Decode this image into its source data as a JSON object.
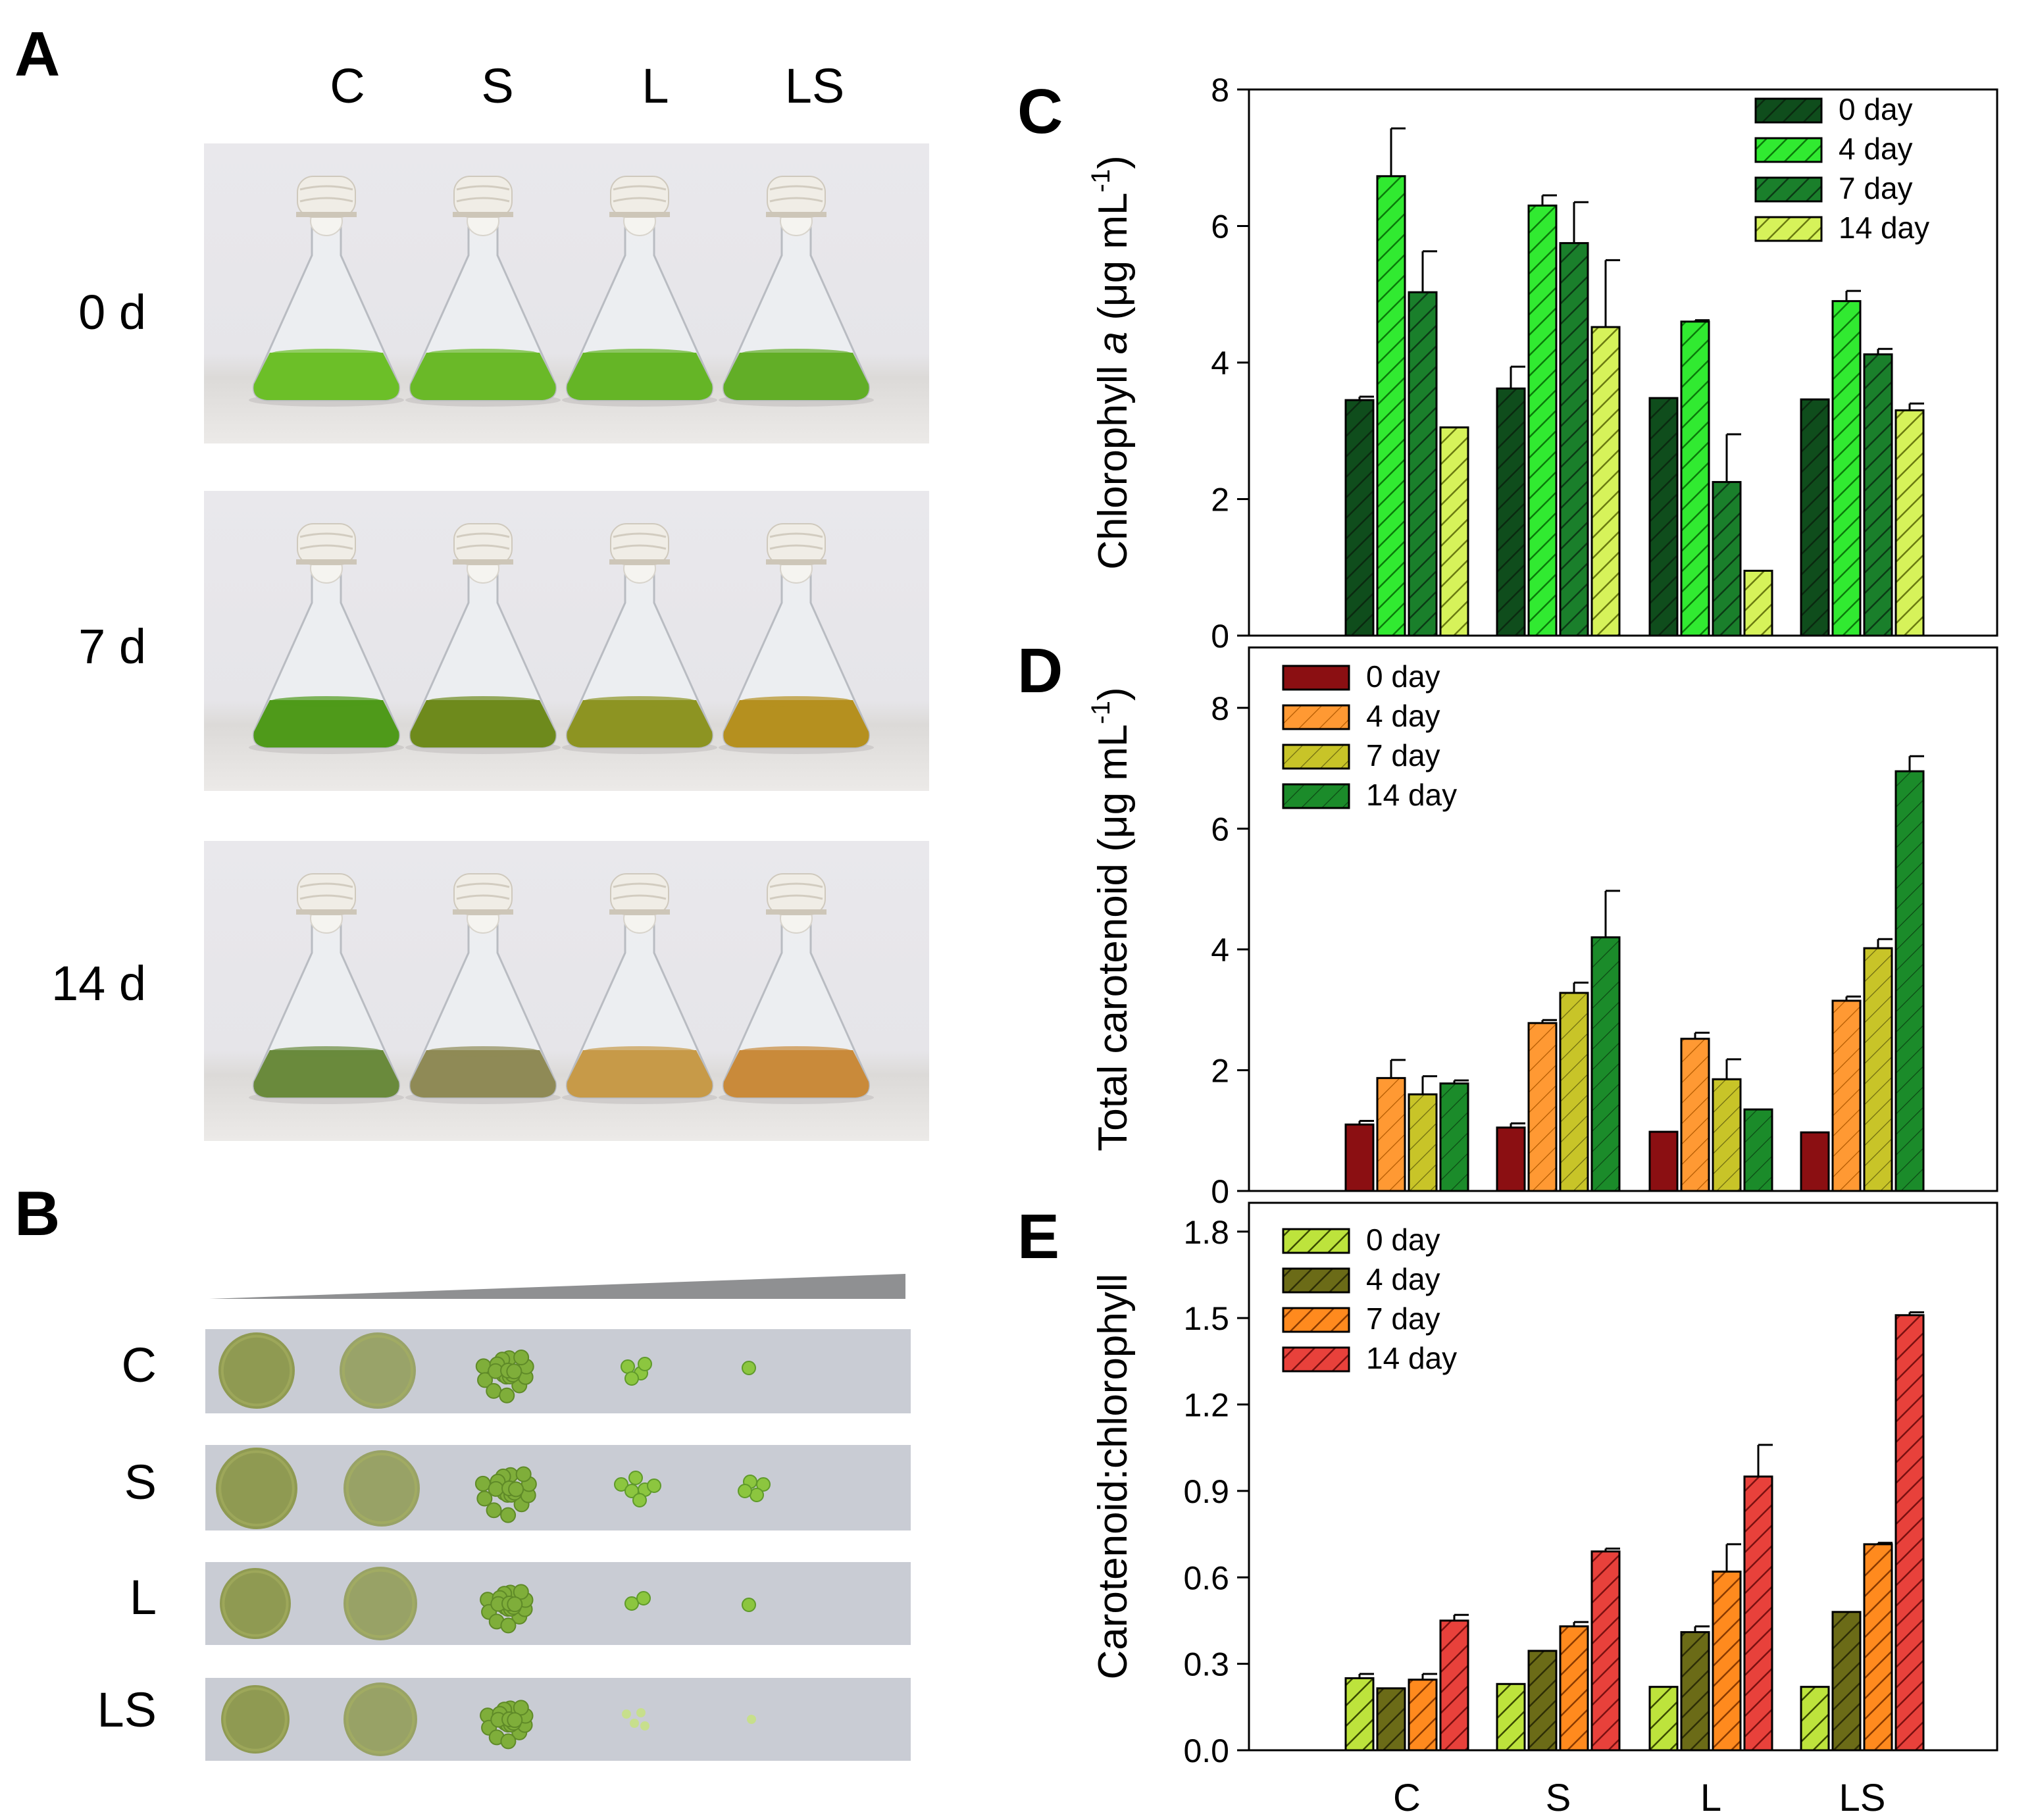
{
  "panel_a": {
    "letter": "A",
    "columns": [
      "C",
      "S",
      "L",
      "LS"
    ],
    "rows": [
      {
        "label": "0 d",
        "colors": [
          "#6cbf28",
          "#6ab928",
          "#65b526",
          "#62ae27"
        ]
      },
      {
        "label": "7 d",
        "colors": [
          "#4f9a1a",
          "#6e8a1c",
          "#8d9422",
          "#b5901f"
        ]
      },
      {
        "label": "14 d",
        "colors": [
          "#6a8a3c",
          "#8f8a56",
          "#c79a48",
          "#c98a3a"
        ]
      }
    ]
  },
  "panel_b": {
    "letter": "B",
    "rows": [
      "C",
      "S",
      "L",
      "LS"
    ]
  },
  "colors": {
    "chl": [
      "#0f4d1c",
      "#31ea31",
      "#1a7f2b",
      "#d6f25a"
    ],
    "car": [
      "#8b0f12",
      "#ff9933",
      "#c8c428",
      "#1b8b2a"
    ],
    "ratio": [
      "#bde33c",
      "#6b6b17",
      "#ff8a1e",
      "#e8413b"
    ]
  },
  "chart_data": [
    {
      "panel": "C",
      "type": "bar",
      "categories": [
        "C",
        "S",
        "L",
        "LS"
      ],
      "ylabel_pre": "Chlorophyll ",
      "ylabel_italic": "a",
      "ylabel_post": " (μg mL",
      "ylabel_sup": "-1",
      "ylabel_close": ")",
      "ylim": [
        0,
        8
      ],
      "yticks": [
        "0",
        "2",
        "4",
        "6",
        "8"
      ],
      "legend_position": "top-right",
      "series": [
        {
          "name": "0 day",
          "values": [
            3.45,
            3.62,
            3.48,
            3.46
          ],
          "errors": [
            0.05,
            0.32,
            0.0,
            0.0
          ]
        },
        {
          "name": "4 day",
          "values": [
            6.73,
            6.3,
            4.6,
            4.9
          ],
          "errors": [
            0.7,
            0.15,
            0.02,
            0.15
          ]
        },
        {
          "name": "7 day",
          "values": [
            5.03,
            5.75,
            2.25,
            4.12
          ],
          "errors": [
            0.6,
            0.6,
            0.7,
            0.08
          ]
        },
        {
          "name": "14 day",
          "values": [
            3.05,
            4.52,
            0.95,
            3.3
          ],
          "errors": [
            0.0,
            0.98,
            0.0,
            0.1
          ]
        }
      ]
    },
    {
      "panel": "D",
      "type": "bar",
      "categories": [
        "C",
        "S",
        "L",
        "LS"
      ],
      "ylabel_pre": "Total carotenoid (μg mL",
      "ylabel_italic": "",
      "ylabel_post": "",
      "ylabel_sup": "-1",
      "ylabel_close": ")",
      "ylim": [
        0,
        9
      ],
      "yticks": [
        "0",
        "2",
        "4",
        "6",
        "8"
      ],
      "legend_position": "top-left",
      "series": [
        {
          "name": "0 day",
          "values": [
            1.1,
            1.05,
            0.98,
            0.97
          ],
          "errors": [
            0.06,
            0.07,
            0.0,
            0.0
          ]
        },
        {
          "name": "4 day",
          "values": [
            1.87,
            2.78,
            2.52,
            3.15
          ],
          "errors": [
            0.3,
            0.05,
            0.1,
            0.07
          ]
        },
        {
          "name": "7 day",
          "values": [
            1.6,
            3.28,
            1.85,
            4.02
          ],
          "errors": [
            0.3,
            0.17,
            0.33,
            0.15
          ]
        },
        {
          "name": "14 day",
          "values": [
            1.78,
            4.2,
            1.35,
            6.95
          ],
          "errors": [
            0.05,
            0.77,
            0.0,
            0.25
          ]
        }
      ]
    },
    {
      "panel": "E",
      "type": "bar",
      "categories": [
        "C",
        "S",
        "L",
        "LS"
      ],
      "ylabel_pre": "Carotenoid:chlorophyll",
      "ylabel_italic": "",
      "ylabel_post": "",
      "ylabel_sup": "",
      "ylabel_close": "",
      "ylim": [
        0,
        1.9
      ],
      "yticks": [
        "0.0",
        "0.3",
        "0.6",
        "0.9",
        "1.2",
        "1.5",
        "1.8"
      ],
      "legend_position": "top-left",
      "series": [
        {
          "name": "0 day",
          "values": [
            0.25,
            0.23,
            0.22,
            0.22
          ],
          "errors": [
            0.015,
            0.0,
            0.0,
            0.0
          ]
        },
        {
          "name": "4 day",
          "values": [
            0.215,
            0.345,
            0.41,
            0.48
          ],
          "errors": [
            0.0,
            0.0,
            0.02,
            0.0
          ]
        },
        {
          "name": "7 day",
          "values": [
            0.245,
            0.43,
            0.62,
            0.715
          ],
          "errors": [
            0.02,
            0.015,
            0.095,
            0.005
          ]
        },
        {
          "name": "14 day",
          "values": [
            0.45,
            0.69,
            0.95,
            1.51
          ],
          "errors": [
            0.02,
            0.01,
            0.11,
            0.01
          ]
        }
      ]
    }
  ]
}
